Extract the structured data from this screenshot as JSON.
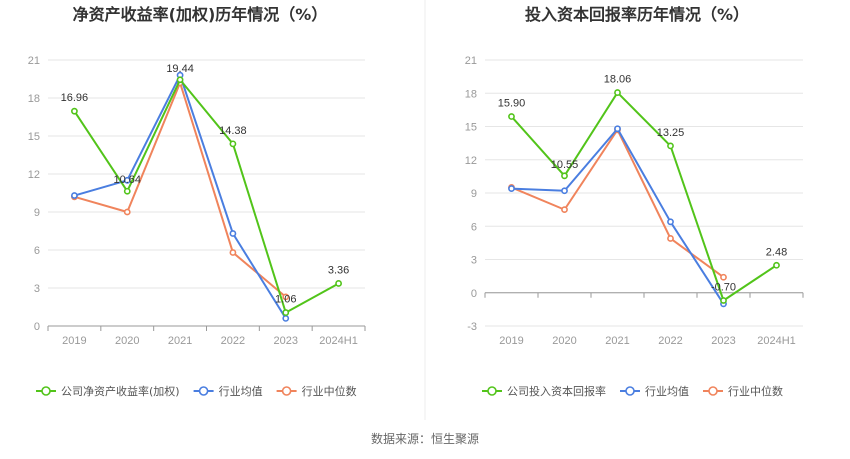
{
  "source_label": "数据来源：恒生聚源",
  "chart_data": [
    {
      "type": "line",
      "title": "净资产收益率(加权)历年情况（%）",
      "categories": [
        "2019",
        "2020",
        "2021",
        "2022",
        "2023",
        "2024H1"
      ],
      "ylim": [
        0,
        21
      ],
      "yticks": [
        0,
        3,
        6,
        9,
        12,
        15,
        18,
        21
      ],
      "grid": true,
      "legend_position": "bottom",
      "series": [
        {
          "name": "公司净资产收益率(加权)",
          "color": "#52c41a",
          "values": [
            16.96,
            10.64,
            19.44,
            14.38,
            1.06,
            3.36
          ],
          "labels": [
            "16.96",
            "10.64",
            "19.44",
            "14.38",
            "1.06",
            "3.36"
          ]
        },
        {
          "name": "行业均值",
          "color": "#4a7ee0",
          "values": [
            10.3,
            11.5,
            19.8,
            7.3,
            0.6,
            null
          ]
        },
        {
          "name": "行业中位数",
          "color": "#f0845c",
          "values": [
            10.2,
            9.0,
            19.2,
            5.8,
            2.3,
            null
          ]
        }
      ]
    },
    {
      "type": "line",
      "title": "投入资本回报率历年情况（%）",
      "categories": [
        "2019",
        "2020",
        "2021",
        "2022",
        "2023",
        "2024H1"
      ],
      "ylim": [
        -3,
        21
      ],
      "yticks": [
        -3,
        0,
        3,
        6,
        9,
        12,
        15,
        18,
        21
      ],
      "grid": true,
      "legend_position": "bottom",
      "series": [
        {
          "name": "公司投入资本回报率",
          "color": "#52c41a",
          "values": [
            15.9,
            10.55,
            18.06,
            13.25,
            -0.7,
            2.48
          ],
          "labels": [
            "15.90",
            "10.55",
            "18.06",
            "13.25",
            "-0.70",
            "2.48"
          ]
        },
        {
          "name": "行业均值",
          "color": "#4a7ee0",
          "values": [
            9.4,
            9.2,
            14.8,
            6.4,
            -1.0,
            null
          ]
        },
        {
          "name": "行业中位数",
          "color": "#f0845c",
          "values": [
            9.5,
            7.5,
            14.7,
            4.9,
            1.4,
            null
          ]
        }
      ]
    }
  ]
}
